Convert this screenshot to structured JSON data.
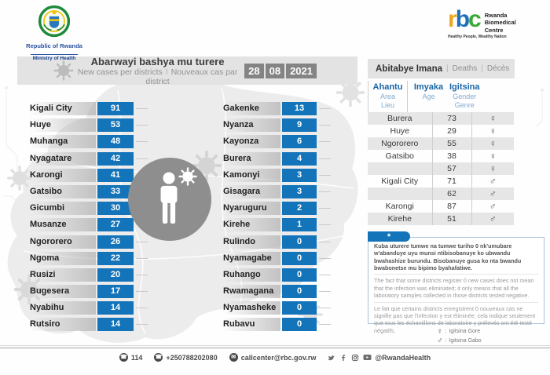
{
  "header": {
    "title": "Abarwayi bashya mu turere",
    "subtitle_en": "New cases per districts",
    "subtitle_sep": "I",
    "subtitle_fr": "Nouveaux cas par district",
    "date": {
      "day": "28",
      "month": "08",
      "year": "2021"
    }
  },
  "moh_logo": {
    "country": "Republic of Rwanda",
    "ministry": "Ministry of Health"
  },
  "rbc_logo": {
    "acronym_letters": [
      "r",
      "b",
      "c"
    ],
    "name_lines": [
      "Rwanda",
      "Biomedical",
      "Centre"
    ],
    "tagline": "Healthy People, Wealthy Nation"
  },
  "districts": {
    "left": [
      {
        "name": "Kigali City",
        "value": "91"
      },
      {
        "name": "Huye",
        "value": "53"
      },
      {
        "name": "Muhanga",
        "value": "48"
      },
      {
        "name": "Nyagatare",
        "value": "42"
      },
      {
        "name": "Karongi",
        "value": "41"
      },
      {
        "name": "Gatsibo",
        "value": "33"
      },
      {
        "name": "Gicumbi",
        "value": "30"
      },
      {
        "name": "Musanze",
        "value": "27"
      },
      {
        "name": "Ngororero",
        "value": "26"
      },
      {
        "name": "Ngoma",
        "value": "22"
      },
      {
        "name": "Rusizi",
        "value": "20"
      },
      {
        "name": "Bugesera",
        "value": "17"
      },
      {
        "name": "Nyabihu",
        "value": "14"
      },
      {
        "name": "Rutsiro",
        "value": "14"
      }
    ],
    "right": [
      {
        "name": "Gakenke",
        "value": "13"
      },
      {
        "name": "Nyanza",
        "value": "9"
      },
      {
        "name": "Kayonza",
        "value": "6"
      },
      {
        "name": "Burera",
        "value": "4"
      },
      {
        "name": "Kamonyi",
        "value": "3"
      },
      {
        "name": "Gisagara",
        "value": "3"
      },
      {
        "name": "Nyaruguru",
        "value": "2"
      },
      {
        "name": "Kirehe",
        "value": "1"
      },
      {
        "name": "Rulindo",
        "value": "0"
      },
      {
        "name": "Nyamagabe",
        "value": "0"
      },
      {
        "name": "Ruhango",
        "value": "0"
      },
      {
        "name": "Rwamagana",
        "value": "0"
      },
      {
        "name": "Nyamasheke",
        "value": "0"
      },
      {
        "name": "Rubavu",
        "value": "0"
      }
    ]
  },
  "deaths": {
    "title_rw": "Abitabye Imana",
    "title_en": "Deaths",
    "title_fr": "Décès",
    "sep": "|",
    "columns": [
      {
        "rw": "Ahantu",
        "en": "Area",
        "fr": "Lieu"
      },
      {
        "rw": "Imyaka",
        "en": "Age",
        "fr": ""
      },
      {
        "rw": "Igitsina",
        "en": "Gender",
        "fr": "Genre"
      }
    ],
    "rows": [
      {
        "area": "Burera",
        "age": "73",
        "gender": "female"
      },
      {
        "area": "Huye",
        "age": "29",
        "gender": "female"
      },
      {
        "area": "Ngororero",
        "age": "55",
        "gender": "female"
      },
      {
        "area": "Gatsibo",
        "age": "38",
        "gender": "female"
      },
      {
        "area": "Kigali City",
        "rowspan": 3,
        "age": "57",
        "gender": "female"
      },
      {
        "age": "71",
        "gender": "male"
      },
      {
        "age": "62",
        "gender": "male"
      },
      {
        "area": "Karongi",
        "age": "87",
        "gender": "male"
      },
      {
        "area": "Kirehe",
        "age": "51",
        "gender": "male"
      }
    ]
  },
  "icons": {
    "female": "♀",
    "male": "♂"
  },
  "note": {
    "marker": "*",
    "kinyarwanda": "Kuba uturere tumwe na tumwe turiho 0 nk'umubare w'abanduye uyu munsi ntibisobanuye ko ubwandu bwahashize burundu. Bisobanuye gusa ko nta bwandu bwabonetse mu bipimo byahafatiwe.",
    "english": "The fact that some districts register 0 new cases does not mean that the infection was eliminated; it only means that all the laboratory samples collected in those districts tested negative.",
    "french": "Le fait que certains districts enregistrent 0 nouveaux cas ne signifie pas que l'infection y est éliminée; cela indique seulement que tous les échantillons de laboratoire y prélevés ont été testé négatifs."
  },
  "legend": [
    {
      "symbol": "♀",
      "sep": ":",
      "label": "Igitsina Gore"
    },
    {
      "symbol": "♂",
      "sep": ":",
      "label": "Igitsina Gabo"
    }
  ],
  "footer": {
    "hotline": "114",
    "phone": "+250788202080",
    "email": "callcenter@rbc.gov.rw",
    "social_handle": "@RwandaHealth"
  },
  "colors": {
    "accent": "#1474ba",
    "panel_gray": "#e3e3e3",
    "date_gray": "#848484",
    "row_stripe": "#e6e6e6",
    "note_border": "#a9c2d8",
    "map_gray": "#ececec"
  },
  "chart_data": [
    {
      "type": "table",
      "title": "Abarwayi bashya mu turere — New cases per districts — Nouveaux cas par district",
      "date": "28/08/2021",
      "columns": [
        "District",
        "New cases"
      ],
      "rows": [
        [
          "Kigali City",
          91
        ],
        [
          "Huye",
          53
        ],
        [
          "Muhanga",
          48
        ],
        [
          "Nyagatare",
          42
        ],
        [
          "Karongi",
          41
        ],
        [
          "Gatsibo",
          33
        ],
        [
          "Gicumbi",
          30
        ],
        [
          "Musanze",
          27
        ],
        [
          "Ngororero",
          26
        ],
        [
          "Ngoma",
          22
        ],
        [
          "Rusizi",
          20
        ],
        [
          "Bugesera",
          17
        ],
        [
          "Nyabihu",
          14
        ],
        [
          "Rutsiro",
          14
        ],
        [
          "Gakenke",
          13
        ],
        [
          "Nyanza",
          9
        ],
        [
          "Kayonza",
          6
        ],
        [
          "Burera",
          4
        ],
        [
          "Kamonyi",
          3
        ],
        [
          "Gisagara",
          3
        ],
        [
          "Nyaruguru",
          2
        ],
        [
          "Kirehe",
          1
        ],
        [
          "Rulindo",
          0
        ],
        [
          "Nyamagabe",
          0
        ],
        [
          "Ruhango",
          0
        ],
        [
          "Rwamagana",
          0
        ],
        [
          "Nyamasheke",
          0
        ],
        [
          "Rubavu",
          0
        ]
      ]
    },
    {
      "type": "table",
      "title": "Abitabye Imana — Deaths — Décès",
      "columns": [
        "Ahantu / Area / Lieu",
        "Imyaka / Age",
        "Igitsina / Gender / Genre"
      ],
      "rows": [
        [
          "Burera",
          73,
          "F"
        ],
        [
          "Huye",
          29,
          "F"
        ],
        [
          "Ngororero",
          55,
          "F"
        ],
        [
          "Gatsibo",
          38,
          "F"
        ],
        [
          "Kigali City",
          57,
          "F"
        ],
        [
          "Kigali City",
          71,
          "M"
        ],
        [
          "Kigali City",
          62,
          "M"
        ],
        [
          "Karongi",
          87,
          "M"
        ],
        [
          "Kirehe",
          51,
          "M"
        ]
      ]
    }
  ]
}
